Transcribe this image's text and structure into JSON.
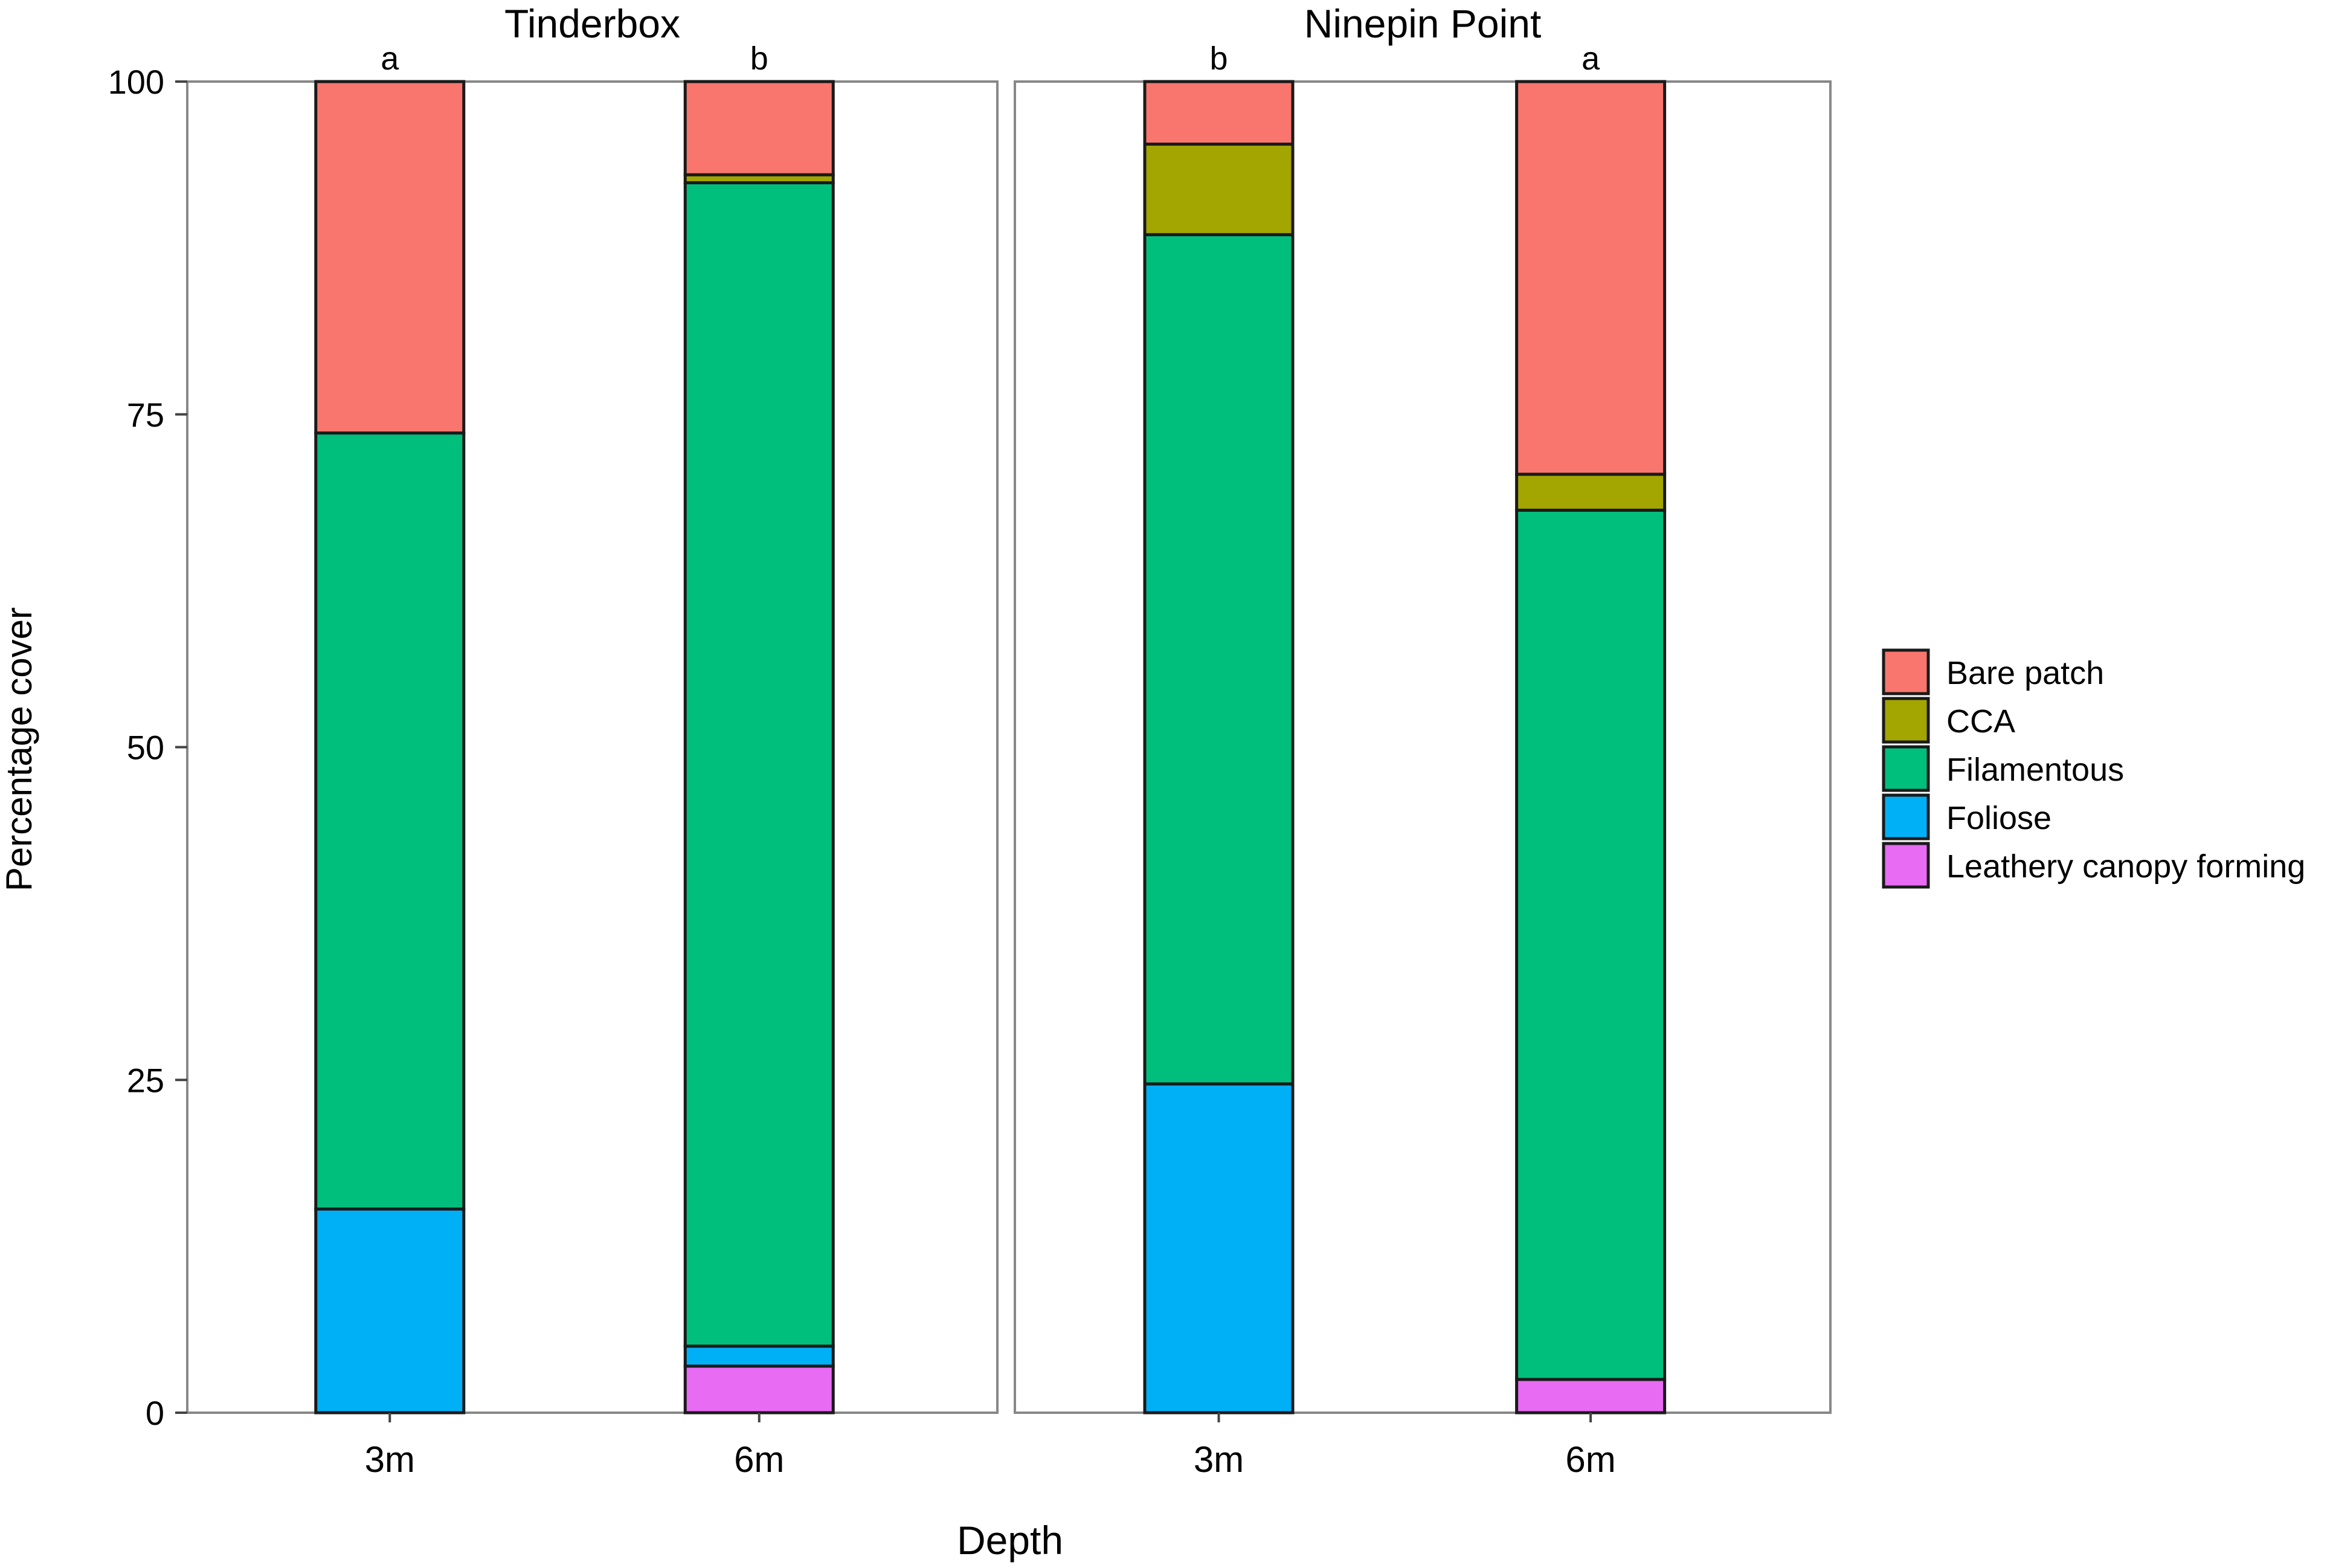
{
  "chart_data": {
    "type": "bar",
    "stacked": true,
    "facets": [
      "Tinderbox",
      "Ninepin Point"
    ],
    "categories": [
      "3m",
      "6m"
    ],
    "xlabel": "Depth",
    "ylabel": "Percentage cover",
    "ylim": [
      0,
      100
    ],
    "yticks": [
      "0",
      "25",
      "50",
      "75",
      "100"
    ],
    "grid": false,
    "legend_position": "right",
    "series": [
      {
        "name": "Leathery canopy forming",
        "color": "#E76BF3",
        "values": {
          "Tinderbox": [
            0,
            3.5
          ],
          "Ninepin Point": [
            0,
            2.5
          ]
        }
      },
      {
        "name": "Foliose",
        "color": "#00B0F6",
        "values": {
          "Tinderbox": [
            15.3,
            1.5
          ],
          "Ninepin Point": [
            24.7,
            0
          ]
        }
      },
      {
        "name": "Filamentous",
        "color": "#00BF7D",
        "values": {
          "Tinderbox": [
            58.3,
            87.4
          ],
          "Ninepin Point": [
            63.8,
            65.3
          ]
        }
      },
      {
        "name": "CCA",
        "color": "#A3A500",
        "values": {
          "Tinderbox": [
            0,
            0.6
          ],
          "Ninepin Point": [
            6.8,
            2.7
          ]
        }
      },
      {
        "name": "Bare patch",
        "color": "#F8766D",
        "values": {
          "Tinderbox": [
            26.4,
            7.0
          ],
          "Ninepin Point": [
            4.7,
            29.5
          ]
        }
      }
    ],
    "legend_order": [
      "Bare patch",
      "CCA",
      "Filamentous",
      "Foliose",
      "Leathery canopy forming"
    ],
    "annotations": {
      "Tinderbox": [
        "a",
        "b"
      ],
      "Ninepin Point": [
        "b",
        "a"
      ]
    }
  }
}
